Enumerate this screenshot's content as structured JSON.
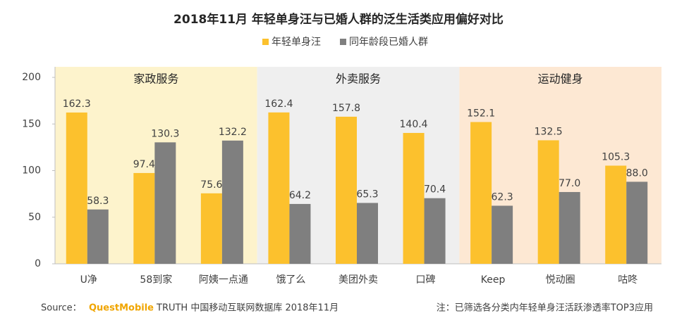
{
  "chart_data": {
    "type": "bar",
    "title": "2018年11月 年轻单身汪与已婚人群的泛生活类应用偏好对比",
    "groups": [
      {
        "label": "家政服务",
        "color": "#fdf3cc",
        "categories": [
          "U净",
          "58到家",
          "阿姨一点通"
        ]
      },
      {
        "label": "外卖服务",
        "color": "#efefef",
        "categories": [
          "饿了么",
          "美团外卖",
          "口碑"
        ]
      },
      {
        "label": "运动健身",
        "color": "#fde8d3",
        "categories": [
          "Keep",
          "悦动圈",
          "咕咚"
        ]
      }
    ],
    "series": [
      {
        "name": "年轻单身汪",
        "color": "#fcc12d",
        "values": [
          162.3,
          97.4,
          75.6,
          162.4,
          157.8,
          140.4,
          152.1,
          132.5,
          105.3
        ],
        "value_labels": [
          "162.3",
          "97.4",
          "75.6",
          "162.4",
          "157.8",
          "140.4",
          "152.1",
          "132.5",
          "105.3"
        ]
      },
      {
        "name": "同年龄段已婚人群",
        "color": "#7f7f7f",
        "values": [
          58.3,
          130.3,
          132.2,
          64.2,
          65.3,
          70.4,
          62.3,
          77,
          88
        ],
        "value_labels": [
          "58.3",
          "130.3",
          "132.2",
          "64.2",
          "65.3",
          "70.4",
          "62.3",
          "77.0",
          "88.0"
        ]
      }
    ],
    "ylim": [
      0,
      200
    ],
    "yticks": [
      0,
      50,
      100,
      150,
      200
    ],
    "source": {
      "label": "Source：",
      "brand": "QuestMobile",
      "text": "TRUTH 中国移动互联网数据库 2018年11月"
    },
    "note": "注：已筛选各分类内年轻单身汪活跃渗透率TOP3应用"
  }
}
